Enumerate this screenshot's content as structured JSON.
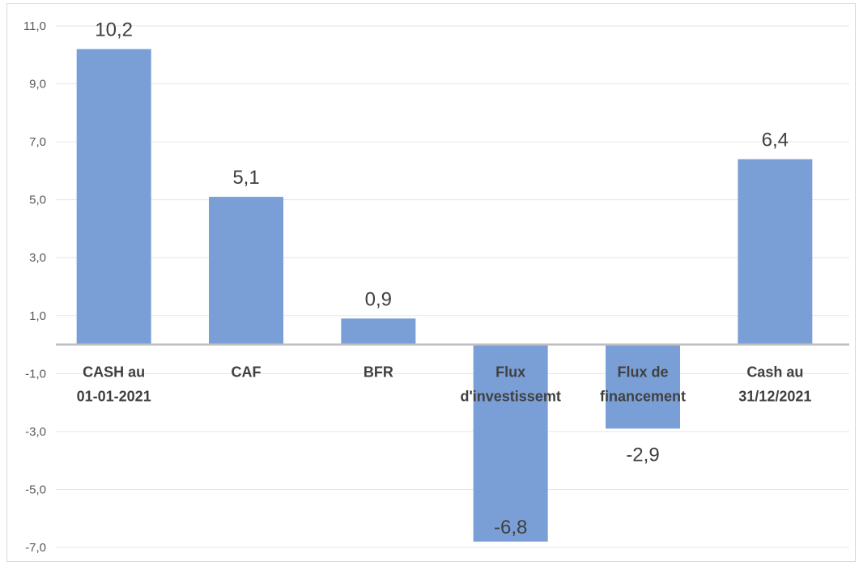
{
  "chart_data": {
    "type": "bar",
    "categories": [
      [
        "CASH  au",
        "01-01-2021"
      ],
      [
        "CAF"
      ],
      [
        "BFR"
      ],
      [
        "Flux",
        "d'investissemt"
      ],
      [
        "Flux de",
        "financement"
      ],
      [
        "Cash  au",
        "31/12/2021"
      ]
    ],
    "values": [
      10.2,
      5.1,
      0.9,
      -6.8,
      -2.9,
      6.4
    ],
    "value_labels": [
      "10,2",
      "5,1",
      "0,9",
      "-6,8",
      "-2,9",
      "6,4"
    ],
    "ylim": [
      -7.0,
      11.0
    ],
    "yticks": [
      11.0,
      9.0,
      7.0,
      5.0,
      3.0,
      1.0,
      -1.0,
      -3.0,
      -5.0,
      -7.0
    ],
    "ytick_labels": [
      "11,0",
      "9,0",
      "7,0",
      "5,0",
      "3,0",
      "1,0",
      "-1,0",
      "-3,0",
      "-5,0",
      "-7,0"
    ],
    "grid": true,
    "bar_color": "#7a9fd6",
    "axis_color": "#bfbfbf",
    "grid_color": "#e6e6e6"
  }
}
